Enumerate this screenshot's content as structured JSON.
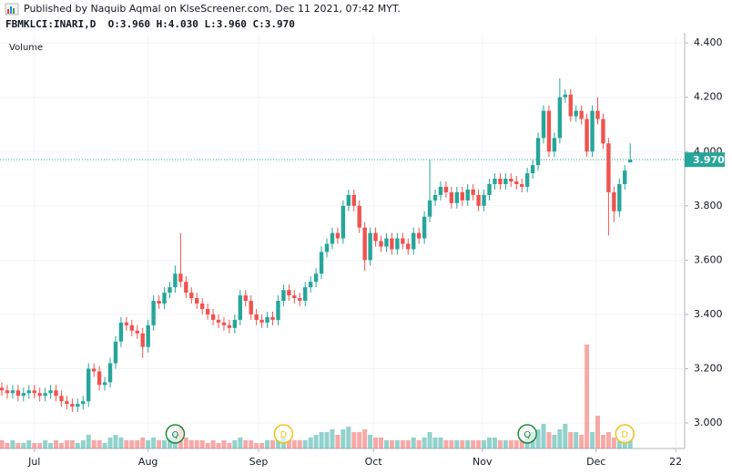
{
  "chart_data": {
    "type": "candlestick",
    "publisher_note": "Published by Naquib Aqmal on KlseScreener.com, Dec 11 2021, 07:42 MYT.",
    "title": "FBMKLCI:INARI,D  O:3.960 H:4.030 L:3.960 C:3.970",
    "volume_label": "Volume",
    "up_color": "#26a69a",
    "down_color": "#ef5350",
    "xlim": [
      -0.34,
      126.05
    ],
    "xticks": [
      {
        "value": 6,
        "label": "Jul"
      },
      {
        "value": 27,
        "label": "Aug"
      },
      {
        "value": 47.4,
        "label": "Sep"
      },
      {
        "value": 68.6,
        "label": "Oct"
      },
      {
        "value": 88.7,
        "label": "Nov"
      },
      {
        "value": 109.7,
        "label": "Dec"
      },
      {
        "value": 124.4,
        "label": "22"
      }
    ],
    "ylim": [
      2.906,
      4.424
    ],
    "yticks": [
      {
        "value": 3.0,
        "label": "3.000"
      },
      {
        "value": 3.2,
        "label": "3.200"
      },
      {
        "value": 3.4,
        "label": "3.400"
      },
      {
        "value": 3.6,
        "label": "3.600"
      },
      {
        "value": 3.8,
        "label": "3.800"
      },
      {
        "value": 4.0,
        "label": "4.000"
      },
      {
        "value": 4.2,
        "label": "4.200"
      },
      {
        "value": 4.4,
        "label": "4.400"
      }
    ],
    "grid": true,
    "last_price": {
      "value": 3.97,
      "label": "3.970"
    },
    "open": [
      3.13,
      3.12,
      3.11,
      3.12,
      3.1,
      3.11,
      3.12,
      3.11,
      3.1,
      3.11,
      3.12,
      3.1,
      3.08,
      3.07,
      3.06,
      3.07,
      3.08,
      3.2,
      3.19,
      3.14,
      3.15,
      3.22,
      3.3,
      3.37,
      3.36,
      3.34,
      3.33,
      3.28,
      3.36,
      3.45,
      3.44,
      3.48,
      3.5,
      3.55,
      3.52,
      3.48,
      3.46,
      3.44,
      3.42,
      3.4,
      3.38,
      3.37,
      3.36,
      3.35,
      3.38,
      3.47,
      3.45,
      3.4,
      3.38,
      3.37,
      3.39,
      3.38,
      3.45,
      3.49,
      3.47,
      3.46,
      3.45,
      3.5,
      3.52,
      3.55,
      3.63,
      3.66,
      3.7,
      3.68,
      3.8,
      3.84,
      3.8,
      3.72,
      3.6,
      3.7,
      3.67,
      3.65,
      3.68,
      3.64,
      3.68,
      3.66,
      3.64,
      3.7,
      3.68,
      3.76,
      3.82,
      3.84,
      3.87,
      3.85,
      3.81,
      3.85,
      3.82,
      3.86,
      3.84,
      3.8,
      3.84,
      3.88,
      3.9,
      3.88,
      3.9,
      3.89,
      3.88,
      3.87,
      3.92,
      3.95,
      4.05,
      4.15,
      4.0,
      4.05,
      4.2,
      4.21,
      4.13,
      4.15,
      4.12,
      4.0,
      4.15,
      4.12,
      4.03,
      3.85,
      3.78,
      3.88,
      3.96
    ],
    "high": [
      3.15,
      3.14,
      3.14,
      3.14,
      3.13,
      3.14,
      3.14,
      3.13,
      3.13,
      3.14,
      3.14,
      3.12,
      3.1,
      3.09,
      3.09,
      3.1,
      3.22,
      3.22,
      3.21,
      3.17,
      3.24,
      3.32,
      3.39,
      3.39,
      3.38,
      3.36,
      3.35,
      3.38,
      3.47,
      3.47,
      3.5,
      3.52,
      3.58,
      3.7,
      3.54,
      3.5,
      3.48,
      3.46,
      3.44,
      3.42,
      3.4,
      3.39,
      3.38,
      3.4,
      3.49,
      3.49,
      3.47,
      3.42,
      3.4,
      3.41,
      3.41,
      3.47,
      3.51,
      3.51,
      3.49,
      3.48,
      3.52,
      3.54,
      3.57,
      3.65,
      3.68,
      3.72,
      3.72,
      3.82,
      3.86,
      3.86,
      3.82,
      3.74,
      3.72,
      3.72,
      3.69,
      3.7,
      3.7,
      3.7,
      3.7,
      3.68,
      3.72,
      3.72,
      3.78,
      3.97,
      3.86,
      3.89,
      3.89,
      3.87,
      3.87,
      3.87,
      3.88,
      3.88,
      3.86,
      3.86,
      3.9,
      3.92,
      3.92,
      3.92,
      3.92,
      3.91,
      3.9,
      3.94,
      3.97,
      4.07,
      4.17,
      4.17,
      4.07,
      4.27,
      4.23,
      4.23,
      4.17,
      4.17,
      4.14,
      4.17,
      4.2,
      4.14,
      4.05,
      3.87,
      3.9,
      3.95,
      4.03
    ],
    "low": [
      3.1,
      3.09,
      3.09,
      3.08,
      3.08,
      3.09,
      3.09,
      3.08,
      3.08,
      3.09,
      3.08,
      3.06,
      3.05,
      3.04,
      3.04,
      3.05,
      3.06,
      3.17,
      3.12,
      3.12,
      3.13,
      3.2,
      3.28,
      3.34,
      3.32,
      3.31,
      3.24,
      3.26,
      3.34,
      3.42,
      3.42,
      3.46,
      3.48,
      3.5,
      3.46,
      3.44,
      3.42,
      3.4,
      3.38,
      3.36,
      3.35,
      3.34,
      3.33,
      3.33,
      3.36,
      3.43,
      3.38,
      3.36,
      3.35,
      3.35,
      3.36,
      3.36,
      3.43,
      3.45,
      3.44,
      3.43,
      3.43,
      3.48,
      3.5,
      3.53,
      3.61,
      3.64,
      3.66,
      3.66,
      3.78,
      3.78,
      3.7,
      3.56,
      3.58,
      3.65,
      3.63,
      3.63,
      3.62,
      3.62,
      3.64,
      3.62,
      3.62,
      3.66,
      3.66,
      3.74,
      3.8,
      3.82,
      3.83,
      3.79,
      3.79,
      3.8,
      3.8,
      3.82,
      3.78,
      3.78,
      3.82,
      3.86,
      3.86,
      3.86,
      3.87,
      3.86,
      3.85,
      3.85,
      3.9,
      3.93,
      4.03,
      3.98,
      3.98,
      4.03,
      4.18,
      4.11,
      4.11,
      4.1,
      3.98,
      3.98,
      4.1,
      4.01,
      3.69,
      3.74,
      3.76,
      3.86,
      3.96
    ],
    "close": [
      3.12,
      3.11,
      3.12,
      3.1,
      3.11,
      3.12,
      3.11,
      3.1,
      3.11,
      3.12,
      3.1,
      3.08,
      3.07,
      3.06,
      3.07,
      3.08,
      3.2,
      3.19,
      3.14,
      3.15,
      3.22,
      3.3,
      3.37,
      3.36,
      3.34,
      3.33,
      3.28,
      3.36,
      3.45,
      3.44,
      3.48,
      3.5,
      3.55,
      3.52,
      3.48,
      3.46,
      3.44,
      3.42,
      3.4,
      3.38,
      3.37,
      3.36,
      3.35,
      3.38,
      3.47,
      3.45,
      3.4,
      3.38,
      3.37,
      3.39,
      3.38,
      3.45,
      3.49,
      3.47,
      3.46,
      3.45,
      3.5,
      3.52,
      3.55,
      3.63,
      3.66,
      3.7,
      3.68,
      3.8,
      3.84,
      3.8,
      3.72,
      3.6,
      3.7,
      3.67,
      3.65,
      3.68,
      3.64,
      3.68,
      3.66,
      3.64,
      3.7,
      3.68,
      3.76,
      3.82,
      3.84,
      3.87,
      3.85,
      3.81,
      3.85,
      3.82,
      3.86,
      3.84,
      3.8,
      3.84,
      3.88,
      3.9,
      3.88,
      3.9,
      3.89,
      3.88,
      3.87,
      3.92,
      3.95,
      4.05,
      4.15,
      4.0,
      4.05,
      4.2,
      4.21,
      4.13,
      4.15,
      4.12,
      4.0,
      4.15,
      4.12,
      4.03,
      3.85,
      3.78,
      3.88,
      3.93,
      3.97
    ],
    "volume": [
      3,
      2,
      3,
      2,
      2,
      3,
      2,
      2,
      3,
      2,
      3,
      2,
      3,
      3,
      2,
      3,
      5,
      3,
      3,
      2,
      4,
      5,
      4,
      3,
      3,
      3,
      4,
      3,
      4,
      3,
      3,
      4,
      6,
      8,
      4,
      3,
      3,
      3,
      2,
      3,
      2,
      3,
      2,
      3,
      4,
      3,
      3,
      2,
      2,
      3,
      3,
      3,
      4,
      3,
      3,
      3,
      3,
      4,
      5,
      6,
      6,
      7,
      5,
      7,
      8,
      6,
      6,
      7,
      5,
      4,
      4,
      3,
      3,
      3,
      3,
      3,
      4,
      3,
      4,
      6,
      4,
      4,
      3,
      3,
      3,
      3,
      3,
      3,
      3,
      3,
      4,
      4,
      3,
      3,
      3,
      3,
      3,
      5,
      6,
      7,
      9,
      6,
      5,
      7,
      9,
      6,
      6,
      5,
      38,
      6,
      12,
      5,
      6,
      4,
      3,
      3,
      3
    ],
    "events": [
      {
        "label": "Q",
        "index": 32,
        "color": "#1e8a3c"
      },
      {
        "label": "D",
        "index": 52,
        "color": "#f0c419"
      },
      {
        "label": "Q",
        "index": 97,
        "color": "#1e8a3c"
      },
      {
        "label": "D",
        "index": 115,
        "color": "#f0c419"
      }
    ]
  }
}
